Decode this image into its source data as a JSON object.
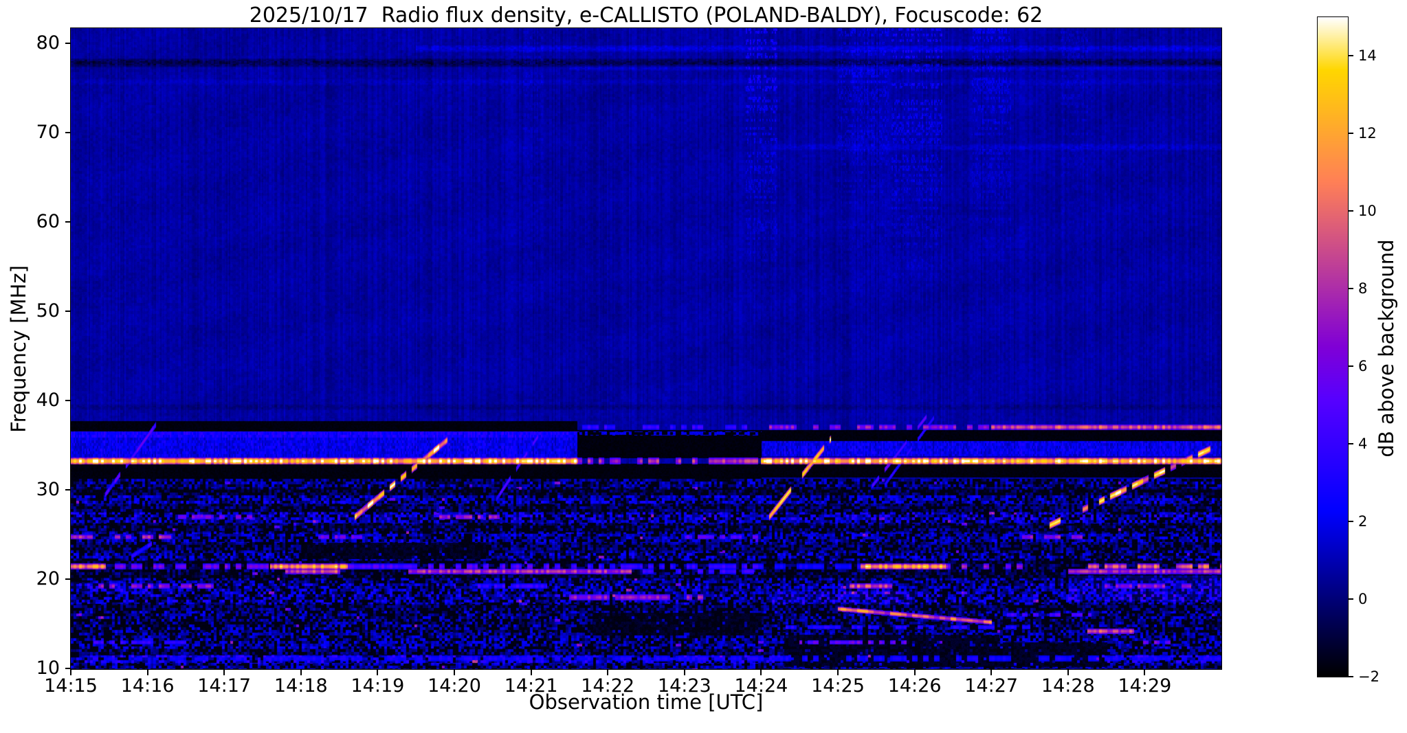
{
  "chart_data": {
    "type": "heatmap",
    "title": "2025/10/17  Radio flux density, e-CALLISTO (POLAND-BALDY), Focuscode: 62",
    "xlabel": "Observation time [UTC]",
    "ylabel": "Frequency [MHz]",
    "x_ticks": [
      "14:15",
      "14:16",
      "14:17",
      "14:18",
      "14:19",
      "14:20",
      "14:21",
      "14:22",
      "14:23",
      "14:24",
      "14:25",
      "14:26",
      "14:27",
      "14:28",
      "14:29"
    ],
    "x_span_minutes": 15,
    "y_ticks": [
      80,
      70,
      60,
      50,
      40,
      30,
      20,
      10
    ],
    "ylim": [
      10,
      81.7
    ],
    "grid": false,
    "colorbar": {
      "label": "dB above background",
      "range": [
        -2,
        15
      ],
      "colormap": "gnuplot2",
      "ticks": [
        {
          "v": 14,
          "label": "14"
        },
        {
          "v": 12,
          "label": "12"
        },
        {
          "v": 10,
          "label": "10"
        },
        {
          "v": 8,
          "label": "8"
        },
        {
          "v": 6,
          "label": "6"
        },
        {
          "v": 4,
          "label": "4"
        },
        {
          "v": 2,
          "label": "2"
        },
        {
          "v": 0,
          "label": "0"
        },
        {
          "v": -2,
          "label": "−2"
        }
      ]
    },
    "background_level_db": 0.7,
    "zones": {
      "upper_min_f": 38.2,
      "band_min_f": 31.3
    },
    "segments": [
      {
        "t": [
          0,
          6.6
        ],
        "bands": [
          {
            "f": [
              36.6,
              37.75
            ],
            "kind": "black"
          },
          {
            "f": [
              33.55,
              36.6
            ],
            "kind": "blue",
            "top_bright": true
          },
          {
            "f": [
              31.3,
              32.95
            ],
            "kind": "black"
          }
        ]
      },
      {
        "t": [
          6.6,
          9.0
        ],
        "bands": [
          {
            "f": [
              33.6,
              36.7
            ],
            "kind": "black"
          },
          {
            "f": [
              36.1,
              36.55
            ],
            "kind": "dotblue"
          },
          {
            "f": [
              31.3,
              33.0
            ],
            "kind": "black"
          }
        ]
      },
      {
        "t": [
          9.0,
          15.0
        ],
        "bands": [
          {
            "f": [
              35.5,
              36.75
            ],
            "kind": "black"
          },
          {
            "f": [
              33.8,
              35.5
            ],
            "kind": "blue",
            "top_bright": false
          },
          {
            "f": [
              31.4,
              33.05
            ],
            "kind": "black"
          }
        ]
      }
    ],
    "rfi_lines": [
      {
        "f": 33.25,
        "w": 0.38,
        "env": [
          [
            0,
            6.6,
            13.5,
            0
          ],
          [
            6.6,
            9.0,
            8,
            1
          ],
          [
            9.0,
            15,
            13.5,
            0
          ]
        ]
      },
      {
        "f": 37.05,
        "w": 0.3,
        "env": [
          [
            6.6,
            9.0,
            4,
            1
          ],
          [
            9.0,
            12.0,
            7,
            1
          ],
          [
            12.0,
            15,
            9.5,
            0
          ]
        ]
      },
      {
        "f": 21.45,
        "w": 0.32,
        "env": [
          [
            0,
            0.45,
            11,
            0
          ],
          [
            0.45,
            2.6,
            6,
            1
          ],
          [
            2.6,
            3.6,
            12,
            0
          ],
          [
            3.6,
            6.3,
            5,
            1
          ],
          [
            6.3,
            9.0,
            4,
            1
          ],
          [
            9.0,
            10.3,
            3,
            1
          ],
          [
            10.3,
            11.4,
            12,
            0
          ],
          [
            11.4,
            12.4,
            7,
            1
          ],
          [
            13.2,
            15,
            10,
            1
          ]
        ]
      },
      {
        "f": 20.9,
        "w": 0.3,
        "env": [
          [
            2.8,
            3.5,
            9,
            0
          ],
          [
            4.4,
            7.3,
            8,
            0
          ],
          [
            7.3,
            8.9,
            4,
            1
          ],
          [
            13.0,
            15,
            8,
            0
          ]
        ]
      },
      {
        "f": 19.25,
        "w": 0.3,
        "env": [
          [
            0.25,
            1.9,
            7,
            1
          ],
          [
            5.0,
            6.2,
            4,
            1
          ],
          [
            10.15,
            10.7,
            9,
            0
          ],
          [
            13.4,
            14.6,
            7,
            1
          ]
        ]
      },
      {
        "f": 18.0,
        "w": 0.35,
        "env": [
          [
            6.5,
            8.3,
            7,
            1
          ]
        ]
      },
      {
        "f": 24.75,
        "w": 0.28,
        "env": [
          [
            0,
            1.3,
            8,
            1
          ],
          [
            3.2,
            3.9,
            6,
            1
          ],
          [
            8.0,
            9.0,
            5,
            1
          ],
          [
            12.4,
            13.2,
            7,
            1
          ]
        ]
      },
      {
        "f": 27.0,
        "w": 0.3,
        "env": [
          [
            1.4,
            2.5,
            6,
            1
          ],
          [
            4.6,
            5.6,
            7,
            1
          ]
        ]
      },
      {
        "f": 14.65,
        "w": 0.25,
        "env": [
          [
            9.3,
            12.5,
            3.5,
            1
          ]
        ]
      },
      {
        "f": 12.95,
        "w": 0.25,
        "env": [
          [
            0.3,
            1.6,
            4,
            1
          ],
          [
            9.5,
            10.9,
            6,
            1
          ],
          [
            13.9,
            14.45,
            6,
            1
          ]
        ]
      },
      {
        "f": 11.15,
        "w": 0.35,
        "env": [
          [
            0,
            15,
            3,
            1
          ]
        ]
      },
      {
        "f": 16.05,
        "w": 0.25,
        "env": [
          [
            12.2,
            13.3,
            5,
            1
          ]
        ]
      },
      {
        "f": 14.2,
        "w": 0.3,
        "env": [
          [
            13.25,
            13.85,
            9,
            0
          ]
        ]
      }
    ],
    "sweeps": [
      {
        "t": [
          0.45,
          1.1
        ],
        "f": [
          29.5,
          37.3
        ],
        "peak": 5,
        "w": 0.32,
        "dash": 1
      },
      {
        "t": [
          3.7,
          4.9
        ],
        "f": [
          27.0,
          35.6
        ],
        "peak": 13,
        "w": 0.42,
        "dash": 1
      },
      {
        "t": [
          5.55,
          6.15
        ],
        "f": [
          29.0,
          36.8
        ],
        "peak": 4.5,
        "w": 0.3,
        "dash": 1
      },
      {
        "t": [
          9.1,
          9.9
        ],
        "f": [
          27.0,
          35.7
        ],
        "peak": 13,
        "w": 0.42,
        "dash": 1
      },
      {
        "t": [
          10.45,
          11.15
        ],
        "f": [
          30.5,
          38.2
        ],
        "peak": 5.5,
        "w": 0.28,
        "dash": 1
      },
      {
        "t": [
          10.6,
          11.25
        ],
        "f": [
          30.5,
          38.2
        ],
        "peak": 4.2,
        "w": 0.26,
        "dash": 1
      },
      {
        "t": [
          12.7,
          14.85
        ],
        "f": [
          25.8,
          34.6
        ],
        "peak": 12.5,
        "w": 0.42,
        "dash": 1
      },
      {
        "t": [
          10.0,
          12.0
        ],
        "f": [
          16.7,
          15.2
        ],
        "peak": 10,
        "w": 0.28,
        "dash": 0
      },
      {
        "t": [
          0.5,
          1.05
        ],
        "f": [
          21.0,
          24.0
        ],
        "peak": 4,
        "w": 0.3,
        "dash": 1
      }
    ],
    "upper_lines": [
      {
        "f": 79.45,
        "w": 0.35,
        "amp": 0.9,
        "t": [
          4.5,
          15
        ]
      },
      {
        "f": 77.85,
        "w": 0.45,
        "amp": -1.3,
        "t": [
          0,
          15
        ]
      },
      {
        "f": 77.3,
        "w": 0.3,
        "amp": 0.7,
        "t": [
          6.5,
          15
        ]
      },
      {
        "f": 75.7,
        "w": 0.3,
        "amp": 0.4,
        "t": [
          0,
          15
        ]
      },
      {
        "f": 68.4,
        "w": 0.35,
        "amp": 0.6,
        "t": [
          9,
          15
        ]
      },
      {
        "f": 39.3,
        "w": 0.3,
        "amp": -0.5,
        "t": [
          0,
          15
        ]
      }
    ],
    "speckle_columns": [
      {
        "t": [
          8.8,
          9.2
        ],
        "amp": 1.8
      },
      {
        "t": [
          10.0,
          10.65
        ],
        "amp": 1.0
      },
      {
        "t": [
          10.7,
          11.35
        ],
        "amp": 1.7
      },
      {
        "t": [
          11.75,
          12.25
        ],
        "amp": 1.1
      },
      {
        "t": [
          12.9,
          13.25
        ],
        "amp": 0.6
      },
      {
        "t": [
          5.9,
          6.15
        ],
        "amp": 0.5
      }
    ],
    "lower_bands": [
      {
        "f": [
          30.2,
          31.3
        ],
        "m": 0.3,
        "a": 1.4,
        "bf": 0.4
      },
      {
        "f": [
          29.4,
          30.2
        ],
        "m": -0.6,
        "a": 1.0,
        "bf": 0.55
      },
      {
        "f": [
          28.4,
          29.4
        ],
        "m": 0.9,
        "a": 1.9,
        "bf": 0.32
      },
      {
        "f": [
          27.5,
          28.4
        ],
        "m": 0.0,
        "a": 1.2,
        "bf": 0.48
      },
      {
        "f": [
          26.3,
          27.5
        ],
        "m": 1.1,
        "a": 2.0,
        "bf": 0.32
      },
      {
        "f": [
          25.3,
          26.3
        ],
        "m": -0.2,
        "a": 1.2,
        "bf": 0.52
      },
      {
        "f": [
          24.1,
          25.3
        ],
        "m": 0.9,
        "a": 1.8,
        "bf": 0.36
      },
      {
        "f": [
          23.1,
          24.1
        ],
        "m": 0.2,
        "a": 1.3,
        "bf": 0.46
      },
      {
        "f": [
          22.1,
          23.1
        ],
        "m": 0.7,
        "a": 1.7,
        "bf": 0.42
      },
      {
        "f": [
          21.7,
          22.1
        ],
        "m": -0.7,
        "a": 0.8,
        "bf": 0.6
      },
      {
        "f": [
          20.1,
          21.7
        ],
        "m": -0.4,
        "a": 1.1,
        "bf": 0.55
      },
      {
        "f": [
          19.5,
          20.1
        ],
        "m": 0.5,
        "a": 1.5,
        "bf": 0.42
      },
      {
        "f": [
          18.5,
          19.5
        ],
        "m": 0.8,
        "a": 1.9,
        "bf": 0.36
      },
      {
        "f": [
          17.3,
          18.5
        ],
        "m": 0.9,
        "a": 1.9,
        "bf": 0.36
      },
      {
        "f": [
          16.4,
          17.3
        ],
        "m": 0.1,
        "a": 1.2,
        "bf": 0.5
      },
      {
        "f": [
          15.4,
          16.4
        ],
        "m": 0.5,
        "a": 1.4,
        "bf": 0.45
      },
      {
        "f": [
          14.1,
          15.4
        ],
        "m": 0.3,
        "a": 1.3,
        "bf": 0.5
      },
      {
        "f": [
          13.1,
          14.1
        ],
        "m": 0.7,
        "a": 1.6,
        "bf": 0.4
      },
      {
        "f": [
          12.3,
          13.1
        ],
        "m": 0.9,
        "a": 1.7,
        "bf": 0.38
      },
      {
        "f": [
          11.5,
          12.3
        ],
        "m": 0.3,
        "a": 1.2,
        "bf": 0.5
      },
      {
        "f": [
          10.6,
          11.5
        ],
        "m": 1.5,
        "a": 1.9,
        "bf": 0.26
      },
      {
        "f": [
          10.0,
          10.6
        ],
        "m": 0.7,
        "a": 1.4,
        "bf": 0.4
      }
    ],
    "patches": [
      {
        "t": [
          9.3,
          12.1
        ],
        "f": [
          10.2,
          13.8
        ],
        "kind": "dark",
        "s": 0.8
      },
      {
        "t": [
          6.8,
          9.0
        ],
        "f": [
          13.8,
          16.2
        ],
        "kind": "dark",
        "s": 0.6
      },
      {
        "t": [
          3.0,
          5.4
        ],
        "f": [
          22.3,
          24.1
        ],
        "kind": "dark",
        "s": 0.6
      },
      {
        "t": [
          12.1,
          13.5
        ],
        "f": [
          10.2,
          12.9
        ],
        "kind": "dark",
        "s": 0.6
      },
      {
        "t": [
          13.0,
          15.0
        ],
        "f": [
          17.6,
          20.4
        ],
        "kind": "bright",
        "s": 1.4
      },
      {
        "t": [
          0.0,
          1.0
        ],
        "f": [
          18.6,
          19.7
        ],
        "kind": "bright",
        "s": 1.0
      },
      {
        "t": [
          9.15,
          11.0
        ],
        "f": [
          17.2,
          18.8
        ],
        "kind": "bright",
        "s": 1.0
      }
    ]
  }
}
